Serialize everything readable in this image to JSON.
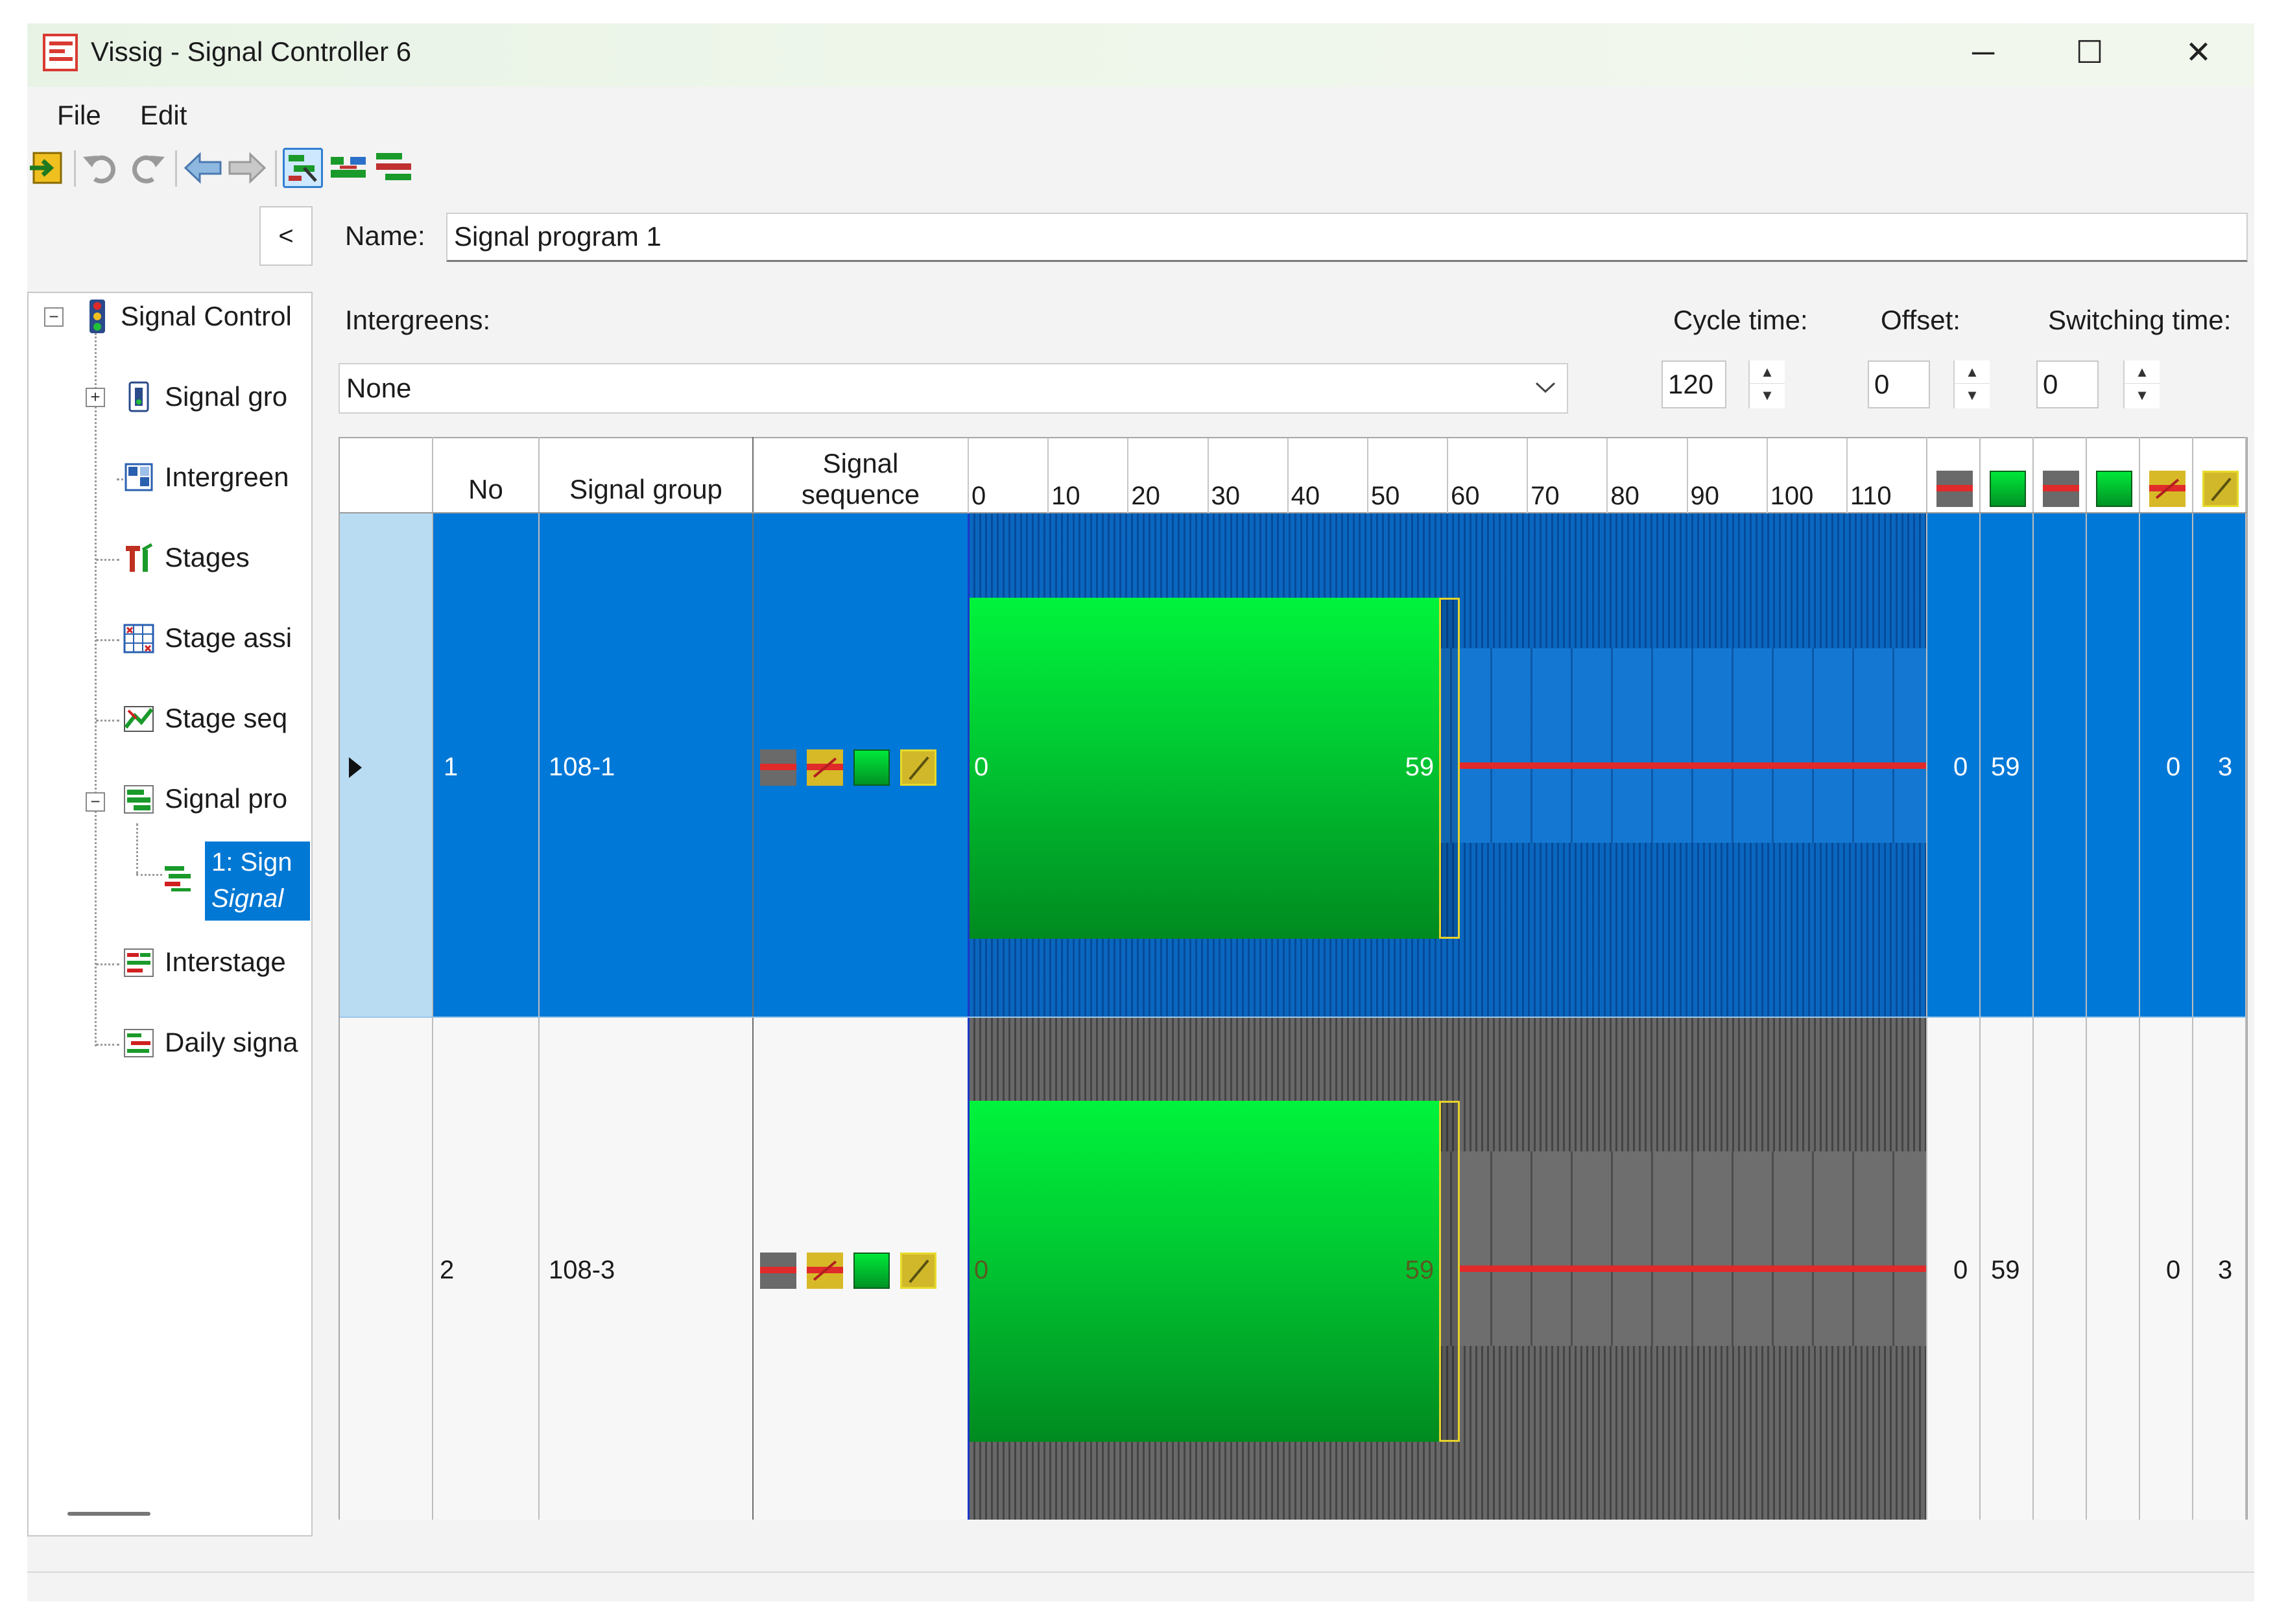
{
  "window": {
    "title": "Vissig - Signal Controller 6",
    "controls": {
      "minimize": "─",
      "maximize": "☐",
      "close": "✕"
    }
  },
  "menu": {
    "file": "File",
    "edit": "Edit"
  },
  "toolbar": {
    "icons": [
      "exit-icon",
      "undo-icon",
      "redo-icon",
      "back-icon",
      "forward-icon",
      "mode-edit-icon",
      "mode-stages-icon",
      "mode-program-icon"
    ]
  },
  "tree": {
    "collapse_label": "<",
    "items": [
      {
        "label": "Signal Control",
        "icon": "traffic-light-icon"
      },
      {
        "label": "Signal gro",
        "icon": "signal-group-icon"
      },
      {
        "label": "Intergreen",
        "icon": "intergreen-icon"
      },
      {
        "label": "Stages",
        "icon": "stages-icon"
      },
      {
        "label": "Stage assi",
        "icon": "stage-assignment-icon"
      },
      {
        "label": "Stage seq",
        "icon": "stage-sequence-icon"
      },
      {
        "label": "Signal pro",
        "icon": "signal-program-icon"
      },
      {
        "label": "1: Sign",
        "sublabel": "Signal",
        "icon": "signal-program-item-icon"
      },
      {
        "label": "Interstage",
        "icon": "interstage-icon"
      },
      {
        "label": "Daily signa",
        "icon": "daily-signal-icon"
      }
    ]
  },
  "form": {
    "name_label": "Name:",
    "name_value": "Signal program 1",
    "intergreens_label": "Intergreens:",
    "intergreens_value": "None",
    "cycle_label": "Cycle time:",
    "cycle_value": "120",
    "offset_label": "Offset:",
    "offset_value": "0",
    "switching_label": "Switching time:",
    "switching_value": "0"
  },
  "grid": {
    "headers": {
      "no": "No",
      "signal_group": "Signal group",
      "signal_sequence_1": "Signal",
      "signal_sequence_2": "sequence"
    },
    "timeline_ticks": [
      "0",
      "10",
      "20",
      "30",
      "40",
      "50",
      "60",
      "70",
      "80",
      "90",
      "100",
      "110"
    ],
    "cycle_time": 120,
    "rows": [
      {
        "no": "1",
        "group": "108-1",
        "green_start": "0",
        "green_end": "59",
        "green_start_val": 0,
        "green_end_val": 59,
        "col1": "0",
        "col2": "59",
        "col5": "0",
        "col6": "3",
        "selected": true
      },
      {
        "no": "2",
        "group": "108-3",
        "green_start": "0",
        "green_end": "59",
        "green_start_val": 0,
        "green_end_val": 59,
        "col1": "0",
        "col2": "59",
        "col5": "0",
        "col6": "3",
        "selected": false
      }
    ]
  },
  "colors": {
    "selection": "#0078d7",
    "green": "#00c832",
    "red": "#e12a2a",
    "amber": "#e6d22a"
  }
}
